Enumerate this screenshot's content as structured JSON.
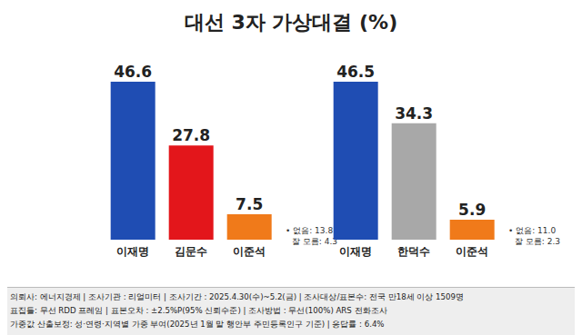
{
  "title": "대선 3자 가상대결 (%)",
  "chart_data": [
    {
      "type": "bar",
      "categories": [
        "이재명",
        "김문수",
        "이준석"
      ],
      "values": [
        46.6,
        27.8,
        7.5
      ],
      "colors": [
        "#1f4db3",
        "#e3161b",
        "#f07a1a"
      ],
      "data_labels": true,
      "tick_labels": "x",
      "annotations": [
        "• 없음: 13.8",
        "잘 모름: 4.3"
      ]
    },
    {
      "type": "bar",
      "categories": [
        "이재명",
        "한덕수",
        "이준석"
      ],
      "values": [
        46.5,
        34.3,
        5.9
      ],
      "colors": [
        "#1f4db3",
        "#a8a8a8",
        "#f07a1a"
      ],
      "data_labels": true,
      "tick_labels": "x",
      "annotations": [
        "• 없음: 11.0",
        "잘 모름: 2.3"
      ]
    }
  ],
  "footer": [
    "의뢰사: 에너지경제 | 조사기관 : 리얼미터 | 조사기간 : 2025.4.30(수)~5.2(금) | 조사대상/표본수: 전국 만18세 이상 1509명",
    "표집틀: 무선 RDD 프레임 | 표본오차 : ±2.5%P(95% 신뢰수준) | 조사방법 : 무선(100%) ARS 전화조사",
    "가중값 산출보정: 성·연령·지역별 가중 부여(2025년 1월 말 행안부 주민등록인구 기준) | 응답률 : 6.4%"
  ]
}
